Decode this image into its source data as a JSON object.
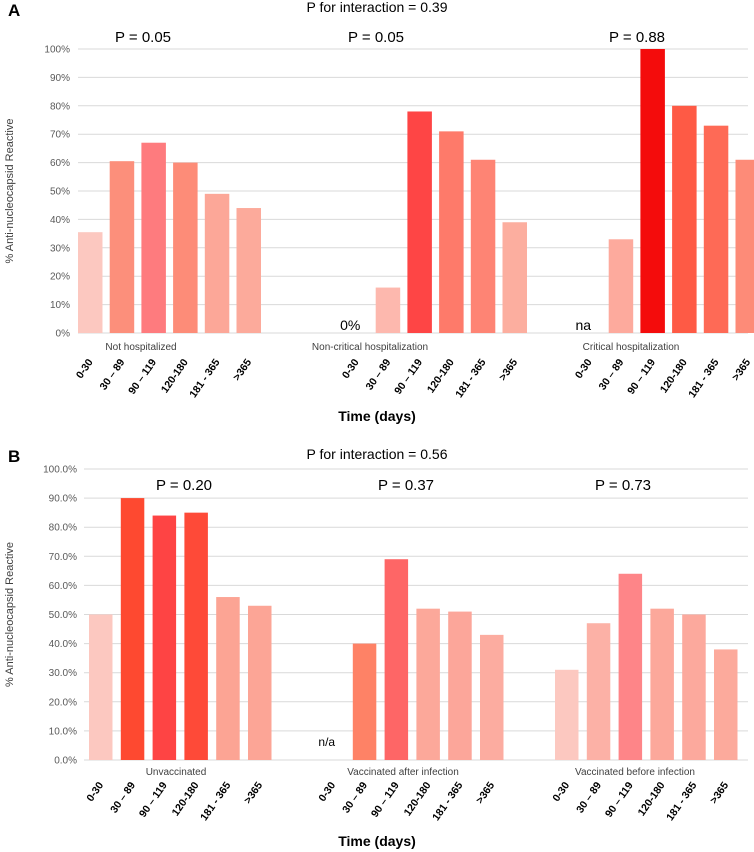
{
  "chart_data": [
    {
      "type": "bar",
      "panel_label": "A",
      "title": "P for interaction = 0.39",
      "ylabel": "% Anti-nucleocapsid Reactive",
      "xlabel": "Time (days)",
      "ylim": [
        0,
        100
      ],
      "yticks": [
        "0%",
        "10%",
        "20%",
        "30%",
        "40%",
        "50%",
        "60%",
        "70%",
        "80%",
        "90%",
        "100%"
      ],
      "categories": [
        "0-30",
        "30 – 89",
        "90 – 119",
        "120-180",
        "181 - 365",
        ">365"
      ],
      "groups": [
        {
          "name": "Not hospitalized",
          "p_value": "P = 0.05",
          "values": [
            35.5,
            60.5,
            67,
            60,
            49,
            44
          ],
          "colors": [
            "#fcc8c0",
            "#fc8f7b",
            "#fe7b7e",
            "#fd8c78",
            "#fca798",
            "#fcaa9b"
          ],
          "missing_label": ""
        },
        {
          "name": "Non-critical hospitalization",
          "p_value": "P = 0.05",
          "values": [
            0,
            16,
            78,
            71,
            61,
            39
          ],
          "colors": [
            "#fcc8c0",
            "#fdb8ae",
            "#fe4545",
            "#fe7a6a",
            "#fe8474",
            "#fcae9f"
          ],
          "missing_label": "0%"
        },
        {
          "name": "Critical hospitalization",
          "p_value": "P = 0.88",
          "values": [
            null,
            33,
            100,
            80,
            73,
            61
          ],
          "colors": [
            "#fcc8c0",
            "#fdaa9d",
            "#f40c0c",
            "#fe5a45",
            "#fe6a56",
            "#fd8b78"
          ],
          "missing_label": "na"
        }
      ]
    },
    {
      "type": "bar",
      "panel_label": "B",
      "title": "P for interaction = 0.56",
      "ylabel": "% Anti-nucleocapsid Reactive",
      "xlabel": "Time (days)",
      "ylim": [
        0,
        100
      ],
      "yticks": [
        "0.0%",
        "10.0%",
        "20.0%",
        "30.0%",
        "40.0%",
        "50.0%",
        "60.0%",
        "70.0%",
        "80.0%",
        "90.0%",
        "100.0%"
      ],
      "categories": [
        "0-30",
        "30 – 89",
        "90 – 119",
        "120-180",
        "181 - 365",
        ">365"
      ],
      "groups": [
        {
          "name": "Unvaccinated",
          "p_value": "P = 0.20",
          "values": [
            50,
            90,
            84,
            85,
            56,
            53
          ],
          "colors": [
            "#fcc8c0",
            "#fe4930",
            "#fe4444",
            "#fe4a38",
            "#fca494",
            "#fca596"
          ],
          "missing_label": ""
        },
        {
          "name": "Vaccinated after infection",
          "p_value": "P = 0.37",
          "values": [
            null,
            40,
            69,
            52,
            51,
            43
          ],
          "colors": [
            "#fcc8c0",
            "#fe8266",
            "#fe6666",
            "#fca89a",
            "#fca69a",
            "#fcaca0"
          ],
          "missing_label": "n/a"
        },
        {
          "name": "Vaccinated before infection",
          "p_value": "P = 0.73",
          "values": [
            31,
            47,
            64,
            52,
            50,
            38
          ],
          "colors": [
            "#fcc8c0",
            "#fcb1a6",
            "#fe8588",
            "#fca89b",
            "#fca99d",
            "#fcaa9c"
          ],
          "missing_label": ""
        }
      ]
    }
  ]
}
